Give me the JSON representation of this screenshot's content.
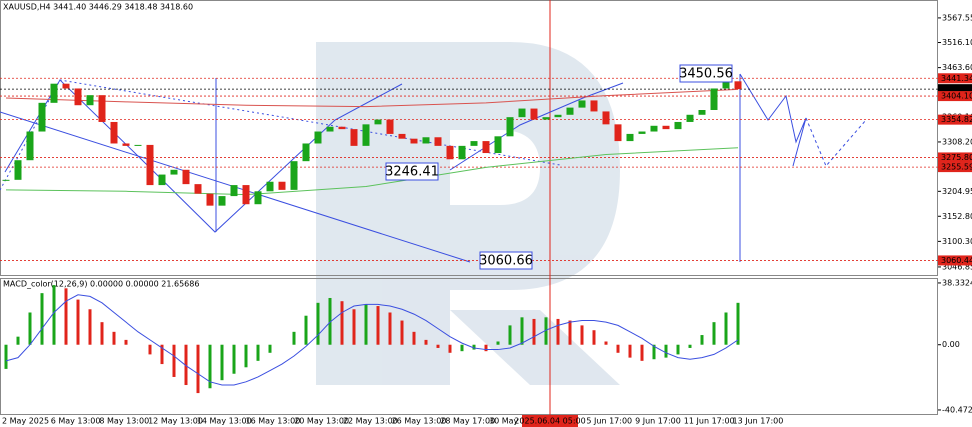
{
  "chart_data": {
    "type": "candlestick",
    "title": "XAUUSD,H4  3441.40 3446.29 3418.48 3418.60",
    "close": [
      3229,
      3270,
      3330,
      3390,
      3430,
      3420,
      3385,
      3406,
      3350,
      3305,
      3300,
      3302,
      3218,
      3240,
      3250,
      3220,
      3200,
      3175,
      3195,
      3218,
      3178,
      3205,
      3225,
      3208,
      3268,
      3305,
      3330,
      3340,
      3335,
      3300,
      3345,
      3355,
      3325,
      3315,
      3305,
      3318,
      3300,
      3272,
      3300,
      3310,
      3285,
      3320,
      3360,
      3378,
      3355,
      3360,
      3365,
      3380,
      3395,
      3372,
      3345,
      3310,
      3325,
      3330,
      3342,
      3335,
      3350,
      3365,
      3375,
      3420,
      3435,
      3418.6
    ],
    "up_color": "#1aa51a",
    "down_color": "#e0241b",
    "moving_averages": [
      {
        "color": "#d9534f",
        "x": [
          0,
          10,
          20,
          30,
          40,
          50,
          61
        ],
        "values": [
          3400,
          3392,
          3385,
          3382,
          3390,
          3405,
          3418
        ]
      },
      {
        "color": "#5cc25c",
        "x": [
          0,
          10,
          20,
          30,
          40,
          50,
          61
        ],
        "values": [
          3208,
          3205,
          3198,
          3215,
          3255,
          3282,
          3296
        ]
      }
    ],
    "ylim": [
      3030,
      3605
    ],
    "yticks": [
      {
        "value": 3567.55,
        "label": "3567.55"
      },
      {
        "value": 3516.1,
        "label": "3516.10"
      },
      {
        "value": 3463.6,
        "label": "3463.60"
      },
      {
        "value": 3411.35,
        "label": "3411.35"
      },
      {
        "value": 3360.1,
        "label": "3360.10"
      },
      {
        "value": 3308.2,
        "label": "3308.20"
      },
      {
        "value": 3256.45,
        "label": "3256.45"
      },
      {
        "value": 3204.95,
        "label": "3204.95"
      },
      {
        "value": 3152.8,
        "label": "3152.80"
      },
      {
        "value": 3100.3,
        "label": "3100.30"
      },
      {
        "value": 3046.85,
        "label": "3046.85"
      }
    ],
    "levels": [
      {
        "value": 3441.34,
        "label": "3441.34",
        "color": "#e0241b"
      },
      {
        "value": 3418.6,
        "label": "3418.60",
        "color": "#000000"
      },
      {
        "value": 3404.1,
        "label": "3404.10",
        "color": "#e0241b"
      },
      {
        "value": 3354.82,
        "label": "3354.82",
        "color": "#e0241b"
      },
      {
        "value": 3275.8,
        "label": "3275.80",
        "color": "#e0241b"
      },
      {
        "value": 3255.59,
        "label": "3255.59",
        "color": "#e0241b"
      },
      {
        "value": 3060.44,
        "label": "3060.44",
        "color": "#e0241b"
      }
    ],
    "annotations": [
      "3450.56",
      "3246.41",
      "3060.66"
    ],
    "x_labels": [
      "2 May 2025",
      "6 May 13:00",
      "8 May 13:00",
      "12 May 13:00",
      "14 May 13:00",
      "16 May 13:00",
      "20 May 13:00",
      "22 May 13:00",
      "26 May 13:00",
      "28 May 17:00",
      "30 May 17:00",
      null,
      "5 Jun 17:00",
      "9 Jun 17:00",
      "11 Jun 17:00",
      "13 Jun 17:00"
    ],
    "crosshair_label": "2025.06.04 05:00",
    "macd": {
      "title": "MACD_color(12,26,9) 0.00000 0.00000 21.65686",
      "histogram": [
        -15,
        5,
        20,
        32,
        37,
        35,
        28,
        22,
        14,
        8,
        3,
        0,
        -6,
        -12,
        -20,
        -25,
        -30,
        -27,
        -22,
        -18,
        -14,
        -10,
        -5,
        0,
        8,
        18,
        26,
        29,
        27,
        22,
        25,
        24,
        20,
        15,
        8,
        3,
        -2,
        -5,
        -4,
        -3,
        -4,
        2,
        12,
        17,
        16,
        17,
        16,
        15,
        12,
        9,
        2,
        -5,
        -8,
        -10,
        -9,
        -8,
        -6,
        -2,
        6,
        14,
        20,
        26
      ],
      "signal": [
        -10,
        -8,
        0,
        10,
        20,
        27,
        31,
        30,
        26,
        20,
        14,
        8,
        3,
        -2,
        -7,
        -13,
        -18,
        -23,
        -25,
        -25,
        -23,
        -20,
        -16,
        -12,
        -7,
        -1,
        6,
        14,
        20,
        24,
        25,
        25,
        24,
        22,
        19,
        15,
        10,
        5,
        1,
        -2,
        -3,
        -3,
        -2,
        1,
        5,
        9,
        12,
        14,
        15,
        15,
        14,
        12,
        8,
        4,
        -1,
        -5,
        -8,
        -9,
        -8,
        -6,
        -2,
        3
      ],
      "signal_color": "#3b4fe0",
      "ylim": [
        -43.6,
        41.4
      ],
      "yticks": [
        {
          "value": 38.33242,
          "label": "38.33242"
        },
        {
          "value": 0,
          "label": "0.00"
        },
        {
          "value": -40.47288,
          "label": "-40.47288"
        }
      ]
    }
  }
}
